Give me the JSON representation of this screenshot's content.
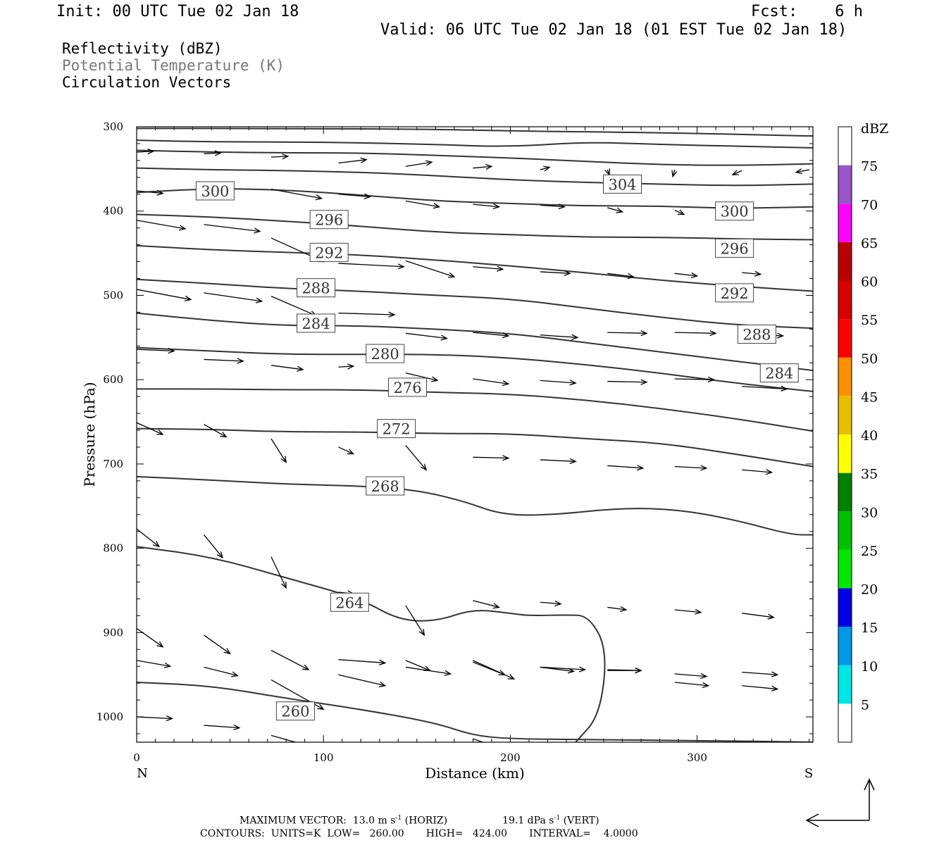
{
  "header": {
    "init": "Init: 00 UTC Tue 02 Jan 18",
    "fcst": "Fcst:    6 h",
    "valid": "Valid: 06 UTC Tue 02 Jan 18 (01 EST Tue 02 Jan 18)"
  },
  "legend": {
    "line1": "Reflectivity (dBZ)",
    "line2": "Potential Temperature (K)",
    "line3": "Circulation Vectors"
  },
  "colors": {
    "theta_line": "#333333",
    "vector": "#000000",
    "legend_gray": "#777777"
  },
  "chart_data": {
    "type": "cross-section",
    "xlabel": "Distance (km)",
    "ylabel": "Pressure (hPa)",
    "xlim": [
      0,
      362
    ],
    "ylim": [
      1030,
      300
    ],
    "x_ticks": [
      0,
      100,
      200,
      300
    ],
    "y_ticks": [
      300,
      400,
      500,
      600,
      700,
      800,
      900,
      1000
    ],
    "x_end_labels": {
      "left": "N",
      "right": "S"
    },
    "colorbar": {
      "unit": "dBZ",
      "levels": [
        5,
        10,
        15,
        20,
        25,
        30,
        35,
        40,
        45,
        50,
        55,
        60,
        65,
        70,
        75
      ],
      "colors": [
        "#ffffff",
        "#00e5e5",
        "#0098e6",
        "#0000e6",
        "#00e600",
        "#00c000",
        "#008000",
        "#ffff00",
        "#e6c000",
        "#ff9000",
        "#ff0000",
        "#d80000",
        "#b80000",
        "#ff00ff",
        "#9955c9",
        "#ffffff"
      ]
    },
    "theta_contours": [
      {
        "label": "260",
        "points": [
          [
            0,
            959
          ],
          [
            40,
            963
          ],
          [
            80,
            978
          ],
          [
            120,
            991
          ],
          [
            160,
            1007
          ],
          [
            180,
            1022
          ],
          [
            200,
            1026
          ],
          [
            240,
            1027
          ],
          [
            300,
            1028
          ],
          [
            362,
            1030
          ]
        ]
      },
      {
        "label": "264",
        "points": [
          [
            0,
            798
          ],
          [
            40,
            810
          ],
          [
            80,
            835
          ],
          [
            120,
            860
          ],
          [
            140,
            885
          ],
          [
            160,
            887
          ],
          [
            180,
            872
          ],
          [
            200,
            877
          ],
          [
            210,
            880
          ],
          [
            230,
            879
          ],
          [
            242,
            880
          ],
          [
            252,
            920
          ],
          [
            248,
            998
          ],
          [
            235,
            1030
          ]
        ]
      },
      {
        "label": "268",
        "points": [
          [
            0,
            715
          ],
          [
            40,
            719
          ],
          [
            80,
            724
          ],
          [
            120,
            726
          ],
          [
            150,
            731
          ],
          [
            175,
            744
          ],
          [
            195,
            760
          ],
          [
            220,
            761
          ],
          [
            260,
            752
          ],
          [
            290,
            754
          ],
          [
            320,
            766
          ],
          [
            350,
            784
          ],
          [
            362,
            784
          ]
        ]
      },
      {
        "label": "272",
        "points": [
          [
            0,
            658
          ],
          [
            40,
            659
          ],
          [
            80,
            662
          ],
          [
            120,
            662
          ],
          [
            160,
            664
          ],
          [
            200,
            664
          ],
          [
            240,
            670
          ],
          [
            280,
            675
          ],
          [
            320,
            688
          ],
          [
            362,
            703
          ]
        ]
      },
      {
        "label": "276",
        "points": [
          [
            0,
            611
          ],
          [
            40,
            611
          ],
          [
            80,
            612
          ],
          [
            120,
            612
          ],
          [
            160,
            615
          ],
          [
            200,
            617
          ],
          [
            240,
            624
          ],
          [
            280,
            634
          ],
          [
            320,
            646
          ],
          [
            362,
            661
          ]
        ]
      },
      {
        "label": "280",
        "points": [
          [
            0,
            562
          ],
          [
            40,
            566
          ],
          [
            80,
            570
          ],
          [
            120,
            570
          ],
          [
            160,
            570
          ],
          [
            200,
            574
          ],
          [
            240,
            582
          ],
          [
            280,
            592
          ],
          [
            320,
            604
          ],
          [
            362,
            614
          ]
        ]
      },
      {
        "label": "284",
        "points": [
          [
            0,
            521
          ],
          [
            40,
            530
          ],
          [
            80,
            536
          ],
          [
            120,
            536
          ],
          [
            160,
            540
          ],
          [
            200,
            545
          ],
          [
            240,
            556
          ],
          [
            280,
            567
          ],
          [
            320,
            578
          ],
          [
            362,
            589
          ]
        ]
      },
      {
        "label": "288",
        "points": [
          [
            0,
            481
          ],
          [
            40,
            486
          ],
          [
            80,
            492
          ],
          [
            120,
            495
          ],
          [
            160,
            500
          ],
          [
            200,
            504
          ],
          [
            240,
            515
          ],
          [
            280,
            526
          ],
          [
            320,
            535
          ],
          [
            362,
            539
          ]
        ]
      },
      {
        "label": "292",
        "points": [
          [
            0,
            441
          ],
          [
            40,
            446
          ],
          [
            80,
            449
          ],
          [
            120,
            452
          ],
          [
            160,
            458
          ],
          [
            200,
            465
          ],
          [
            240,
            473
          ],
          [
            280,
            482
          ],
          [
            320,
            489
          ],
          [
            362,
            495
          ]
        ]
      },
      {
        "label": "296",
        "points": [
          [
            0,
            404
          ],
          [
            40,
            407
          ],
          [
            80,
            412
          ],
          [
            120,
            418
          ],
          [
            160,
            425
          ],
          [
            200,
            428
          ],
          [
            240,
            431
          ],
          [
            280,
            431
          ],
          [
            320,
            433
          ],
          [
            362,
            434
          ]
        ]
      },
      {
        "label": "300",
        "points": [
          [
            0,
            378
          ],
          [
            40,
            373
          ],
          [
            80,
            375
          ],
          [
            120,
            381
          ],
          [
            160,
            388
          ],
          [
            200,
            391
          ],
          [
            240,
            394
          ],
          [
            280,
            394
          ],
          [
            320,
            397
          ],
          [
            362,
            395
          ]
        ]
      },
      {
        "label": "304",
        "points": [
          [
            0,
            349
          ],
          [
            40,
            351
          ],
          [
            80,
            352
          ],
          [
            120,
            354
          ],
          [
            160,
            358
          ],
          [
            200,
            363
          ],
          [
            240,
            366
          ],
          [
            280,
            368
          ],
          [
            320,
            370
          ],
          [
            362,
            368
          ]
        ]
      },
      {
        "label": "",
        "points": [
          [
            0,
            328
          ],
          [
            40,
            330
          ],
          [
            80,
            331
          ],
          [
            120,
            331
          ],
          [
            160,
            334
          ],
          [
            200,
            337
          ],
          [
            240,
            341
          ],
          [
            280,
            345
          ],
          [
            320,
            346
          ],
          [
            362,
            344
          ]
        ]
      },
      {
        "label": "",
        "points": [
          [
            0,
            316
          ],
          [
            40,
            318
          ],
          [
            80,
            318
          ],
          [
            120,
            319
          ],
          [
            160,
            321
          ],
          [
            200,
            324
          ],
          [
            240,
            318
          ],
          [
            280,
            321
          ],
          [
            320,
            323
          ],
          [
            362,
            325
          ]
        ]
      },
      {
        "label": "",
        "points": [
          [
            0,
            302
          ],
          [
            80,
            302
          ],
          [
            160,
            303
          ],
          [
            200,
            305
          ],
          [
            280,
            307
          ],
          [
            362,
            311
          ]
        ]
      }
    ],
    "theta_labels": [
      {
        "text": "300",
        "x": 42,
        "p": 376
      },
      {
        "text": "296",
        "x": 103,
        "p": 410
      },
      {
        "text": "292",
        "x": 103,
        "p": 449
      },
      {
        "text": "288",
        "x": 96,
        "p": 491
      },
      {
        "text": "284",
        "x": 96,
        "p": 533
      },
      {
        "text": "280",
        "x": 133,
        "p": 569
      },
      {
        "text": "276",
        "x": 145,
        "p": 609
      },
      {
        "text": "272",
        "x": 139,
        "p": 658
      },
      {
        "text": "268",
        "x": 133,
        "p": 726
      },
      {
        "text": "264",
        "x": 114,
        "p": 864
      },
      {
        "text": "260",
        "x": 85,
        "p": 993
      },
      {
        "text": "304",
        "x": 260,
        "p": 368
      },
      {
        "text": "300",
        "x": 320,
        "p": 400
      },
      {
        "text": "296",
        "x": 320,
        "p": 444
      },
      {
        "text": "292",
        "x": 320,
        "p": 497
      },
      {
        "text": "288",
        "x": 332,
        "p": 546
      },
      {
        "text": "284",
        "x": 344,
        "p": 592
      }
    ],
    "vectors": [
      [
        0,
        330,
        9,
        -1
      ],
      [
        36,
        332,
        9,
        -1
      ],
      [
        72,
        336,
        9,
        -1
      ],
      [
        108,
        343,
        15,
        -4
      ],
      [
        144,
        347,
        14,
        -5
      ],
      [
        180,
        349,
        10,
        -2
      ],
      [
        216,
        351,
        5,
        -3
      ],
      [
        252,
        351,
        1,
        6
      ],
      [
        288,
        351,
        -1,
        8
      ],
      [
        324,
        352,
        -5,
        5
      ],
      [
        360,
        351,
        -7,
        3
      ],
      [
        0,
        376,
        14,
        3
      ],
      [
        36,
        375,
        14,
        3
      ],
      [
        72,
        374,
        27,
        11
      ],
      [
        108,
        380,
        17,
        3
      ],
      [
        144,
        388,
        18,
        7
      ],
      [
        180,
        392,
        14,
        3
      ],
      [
        216,
        393,
        13,
        2
      ],
      [
        252,
        396,
        8,
        5
      ],
      [
        288,
        399,
        5,
        5
      ],
      [
        324,
        401,
        2,
        4
      ],
      [
        0,
        411,
        26,
        10
      ],
      [
        36,
        416,
        30,
        8
      ],
      [
        72,
        432,
        28,
        28
      ],
      [
        108,
        462,
        35,
        4
      ],
      [
        144,
        459,
        26,
        19
      ],
      [
        180,
        466,
        16,
        3
      ],
      [
        216,
        472,
        16,
        2
      ],
      [
        252,
        474,
        14,
        4
      ],
      [
        288,
        474,
        12,
        3
      ],
      [
        324,
        473,
        10,
        2
      ],
      [
        0,
        493,
        29,
        12
      ],
      [
        36,
        497,
        31,
        10
      ],
      [
        72,
        501,
        24,
        23
      ],
      [
        108,
        521,
        30,
        2
      ],
      [
        144,
        545,
        22,
        6
      ],
      [
        180,
        544,
        19,
        4
      ],
      [
        216,
        547,
        20,
        3
      ],
      [
        252,
        544,
        21,
        1
      ],
      [
        288,
        544,
        22,
        1
      ],
      [
        324,
        546,
        22,
        2
      ],
      [
        0,
        564,
        20,
        2
      ],
      [
        36,
        576,
        21,
        2
      ],
      [
        72,
        583,
        17,
        5
      ],
      [
        108,
        585,
        8,
        -1
      ],
      [
        144,
        592,
        17,
        9
      ],
      [
        180,
        599,
        19,
        6
      ],
      [
        216,
        601,
        19,
        3
      ],
      [
        252,
        602,
        21,
        1
      ],
      [
        288,
        599,
        21,
        1
      ],
      [
        324,
        608,
        24,
        3
      ],
      [
        0,
        651,
        14,
        14
      ],
      [
        36,
        653,
        12,
        15
      ],
      [
        72,
        670,
        8,
        28
      ],
      [
        108,
        680,
        8,
        8
      ],
      [
        144,
        678,
        11,
        29
      ],
      [
        180,
        692,
        19,
        1
      ],
      [
        216,
        695,
        19,
        2
      ],
      [
        252,
        702,
        19,
        3
      ],
      [
        288,
        703,
        17,
        2
      ],
      [
        324,
        707,
        16,
        3
      ],
      [
        0,
        777,
        12,
        21
      ],
      [
        36,
        784,
        10,
        27
      ],
      [
        72,
        810,
        8,
        37
      ],
      [
        108,
        852,
        8,
        2
      ],
      [
        144,
        868,
        10,
        35
      ],
      [
        180,
        862,
        14,
        8
      ],
      [
        216,
        864,
        11,
        2
      ],
      [
        252,
        870,
        10,
        3
      ],
      [
        288,
        873,
        14,
        3
      ],
      [
        324,
        877,
        17,
        5
      ],
      [
        0,
        895,
        14,
        22
      ],
      [
        36,
        903,
        14,
        22
      ],
      [
        72,
        921,
        20,
        23
      ],
      [
        108,
        932,
        25,
        4
      ],
      [
        144,
        933,
        13,
        12
      ],
      [
        180,
        935,
        17,
        15
      ],
      [
        216,
        941,
        18,
        5
      ],
      [
        252,
        945,
        18,
        0
      ],
      [
        288,
        959,
        18,
        4
      ],
      [
        324,
        963,
        19,
        4
      ],
      [
        0,
        933,
        18,
        7
      ],
      [
        36,
        941,
        18,
        10
      ],
      [
        72,
        956,
        28,
        35
      ],
      [
        108,
        950,
        25,
        13
      ],
      [
        144,
        941,
        24,
        8
      ],
      [
        180,
        933,
        22,
        22
      ],
      [
        216,
        941,
        24,
        3
      ],
      [
        252,
        944,
        18,
        1
      ],
      [
        288,
        949,
        17,
        3
      ],
      [
        324,
        947,
        19,
        3
      ],
      [
        0,
        1000,
        19,
        2
      ],
      [
        36,
        1010,
        19,
        3
      ],
      [
        72,
        1022,
        21,
        13
      ],
      [
        108,
        1031,
        23,
        10
      ],
      [
        144,
        1043,
        23,
        12
      ],
      [
        180,
        1026,
        16,
        12
      ],
      [
        216,
        1031,
        19,
        4
      ],
      [
        252,
        1035,
        18,
        1
      ],
      [
        288,
        1035,
        19,
        3
      ],
      [
        324,
        1031,
        21,
        1
      ]
    ],
    "colorbar_label_positions_note": ""
  },
  "footer": {
    "line1_a": "MAXIMUM VECTOR:  13.0 m s",
    "line1_sup1": "-1",
    "line1_b": " (HORIZ)",
    "line1_c": "19.1 dPa s",
    "line1_sup2": "-1",
    "line1_d": " (VERT)",
    "line2": "CONTOURS:  UNITS=K  LOW=   260.00       HIGH=   424.00       INTERVAL=    4.0000"
  }
}
